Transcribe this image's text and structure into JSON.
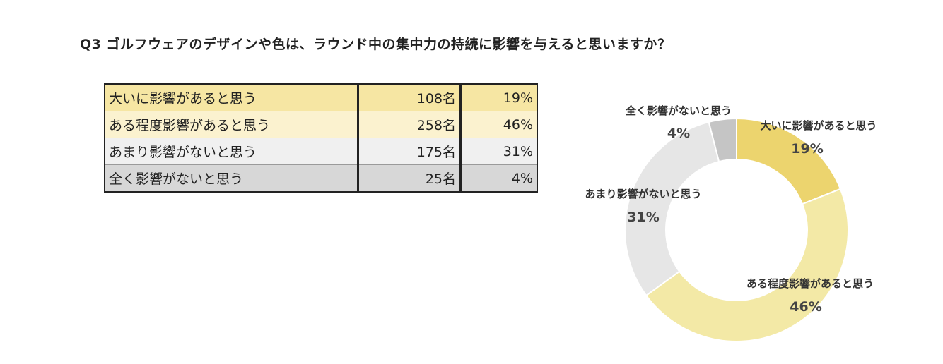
{
  "question": "Q3 ゴルフウェアのデザインや色は、ラウンド中の集中力の持続に影響を与えると思いますか？",
  "table": {
    "rows": [
      {
        "label": "大いに影響があると思う",
        "count": "108名",
        "pct": "19%",
        "bg": "#f6e6a3"
      },
      {
        "label": "ある程度影響があると思う",
        "count": "258名",
        "pct": "46%",
        "bg": "#fbf2cf"
      },
      {
        "label": "あまり影響がないと思う",
        "count": "175名",
        "pct": "31%",
        "bg": "#f0f0f0"
      },
      {
        "label": "全く影響がないと思う",
        "count": "25名",
        "pct": "4%",
        "bg": "#d7d7d7"
      }
    ]
  },
  "chart_data": {
    "type": "pie",
    "style": "donut",
    "start": "top, clockwise",
    "categories": [
      "大いに影響があると思う",
      "ある程度影響があると思う",
      "あまり影響がないと思う",
      "全く影響がないと思う"
    ],
    "values": [
      19,
      46,
      31,
      4
    ],
    "labels": [
      "19%",
      "46%",
      "31%",
      "4%"
    ],
    "colors": [
      "#ecd46e",
      "#f3e9a6",
      "#e6e6e6",
      "#c5c5c5"
    ]
  }
}
